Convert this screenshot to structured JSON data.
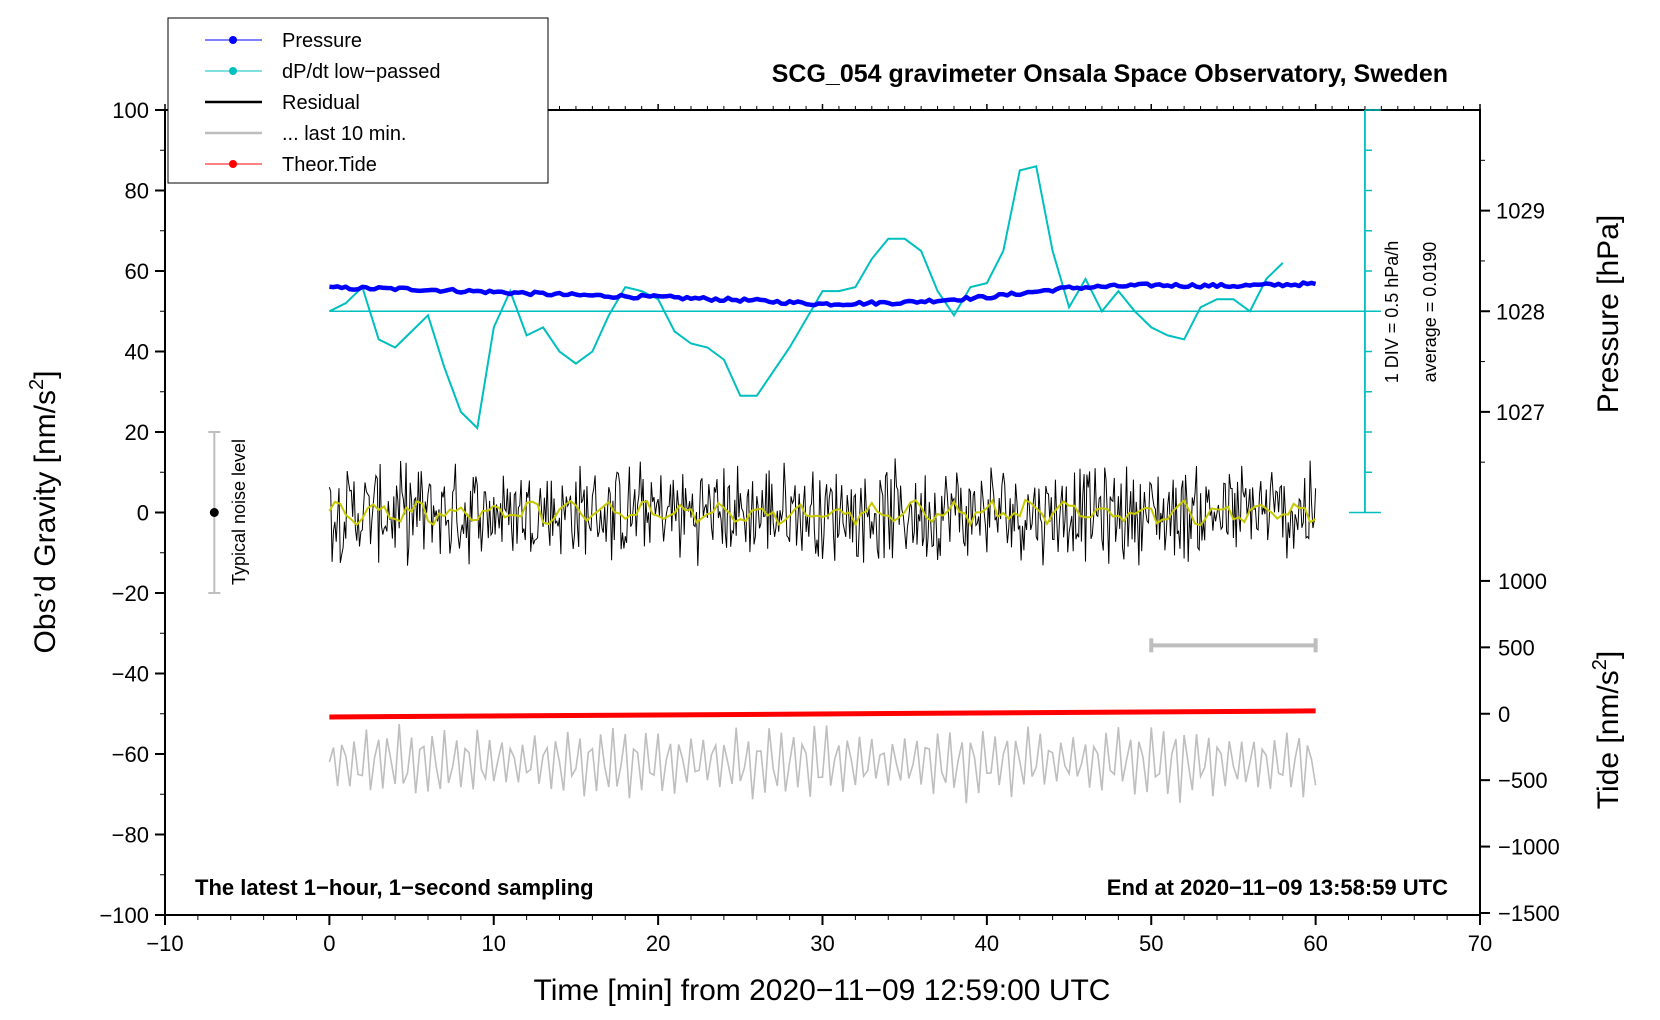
{
  "chart_data": {
    "type": "line",
    "title": "SCG_054 gravimeter Onsala Space Observatory, Sweden",
    "xlabel": "Time [min] from 2020−11−09 12:59:00 UTC",
    "ylabel_left": "Obs’d Gravity [nm/s",
    "ylabel_left_sup": "2",
    "ylabel_left_end": "]",
    "ylabel_right_pressure": "Pressure [hPa]",
    "ylabel_right_tide": "Tide [nm/s",
    "ylabel_right_tide_sup": "2",
    "ylabel_right_tide_end": "]",
    "xlim": [
      -10,
      70
    ],
    "ylim": [
      -100,
      100
    ],
    "x_ticks": [
      -10,
      0,
      10,
      20,
      30,
      40,
      50,
      60,
      70
    ],
    "x_tick_labels": [
      "−10",
      "0",
      "10",
      "20",
      "30",
      "40",
      "50",
      "60",
      "70"
    ],
    "y_ticks": [
      -100,
      -80,
      -60,
      -40,
      -20,
      0,
      20,
      40,
      60,
      80,
      100
    ],
    "y_tick_labels": [
      "−100",
      "−80",
      "−60",
      "−40",
      "−20",
      "0",
      "20",
      "40",
      "60",
      "80",
      "100"
    ],
    "pressure_axis": {
      "ticks": [
        1027,
        1028,
        1029
      ],
      "tick_labels": [
        "1027",
        "1028",
        "1029"
      ],
      "scale": "1 hPa = 25 nm/s² units, 1028 hPa at gravity 50"
    },
    "tide_axis": {
      "ticks": [
        1000,
        500,
        0,
        -500,
        -1000,
        -1500
      ],
      "tick_labels": [
        "1000",
        "500",
        "0",
        "−500",
        "−1000",
        "−1500"
      ],
      "scale": "0 nm/s² at gravity −50; 500 nm/s² per 16.5 gravity units"
    },
    "annotations": {
      "bottom_left": "The latest 1−hour, 1−second sampling",
      "bottom_right": "End at 2020−11−09 13:58:59 UTC",
      "noise_level": "Typical noise level",
      "div_label": "1 DIV = 0.5 hPa/h",
      "average_label": "average = 0.0190"
    },
    "legend": [
      {
        "name": "Pressure",
        "color": "#0000ff",
        "marker": true
      },
      {
        "name": "dP/dt low−passed",
        "color": "#00bfbf",
        "marker": true
      },
      {
        "name": "Residual",
        "color": "#000000",
        "marker": false
      },
      {
        "name": "... last 10 min.",
        "color": "#bebebe",
        "marker": false
      },
      {
        "name": "Theor.Tide",
        "color": "#ff0000",
        "marker": true
      }
    ],
    "noise_level_bar": {
      "x": -7,
      "y_min": -20,
      "y_max": 20,
      "center": 0
    },
    "last10_bar": {
      "x_start": 50,
      "x_end": 60,
      "y": -33
    },
    "pressure_series": {
      "x": [
        0,
        5,
        10,
        15,
        20,
        25,
        30,
        35,
        40,
        45,
        50,
        55,
        60
      ],
      "y": [
        55.8,
        55.5,
        54.8,
        54.0,
        53.5,
        52.8,
        51.8,
        52.2,
        53.5,
        55.8,
        56.5,
        56.3,
        56.8
      ]
    },
    "dpdt_series": {
      "x": [
        0,
        1,
        2,
        3,
        4,
        5,
        6,
        7,
        8,
        9,
        10,
        11,
        12,
        13,
        14,
        15,
        16,
        17,
        18,
        19,
        20,
        21,
        22,
        23,
        24,
        25,
        26,
        27,
        28,
        29,
        30,
        31,
        32,
        33,
        34,
        35,
        36,
        37,
        38,
        39,
        40,
        41,
        42,
        43,
        44,
        45,
        46,
        47,
        48,
        49,
        50,
        51,
        52,
        53,
        54,
        55,
        56,
        57,
        58
      ],
      "y": [
        50,
        52,
        56,
        43,
        41,
        45,
        49,
        36,
        25,
        21,
        46,
        55,
        44,
        46,
        40,
        37,
        40,
        49,
        56,
        55,
        53,
        45,
        42,
        41,
        38,
        29,
        29,
        35,
        41,
        48,
        55,
        55,
        56,
        63,
        68,
        68,
        65,
        55,
        49,
        56,
        57,
        65,
        85,
        86,
        65,
        51,
        58,
        50,
        55,
        50,
        46,
        44,
        43,
        51,
        53,
        53,
        50,
        58,
        62
      ]
    },
    "dpdt_baseline": 50,
    "residual_series": {
      "x_start": 0,
      "x_end": 60,
      "center": 0,
      "amplitude": 12,
      "samples": 720
    },
    "residual_lowpass": {
      "x_start": 0,
      "x_end": 60,
      "center": 0,
      "amplitude": 3
    },
    "last10_series": {
      "x_start": 0,
      "x_end": 60,
      "center": -62,
      "amplitude": 9,
      "samples": 240
    },
    "tide_series": {
      "x": [
        0,
        60
      ],
      "y": [
        -50.8,
        -49.3
      ]
    }
  }
}
